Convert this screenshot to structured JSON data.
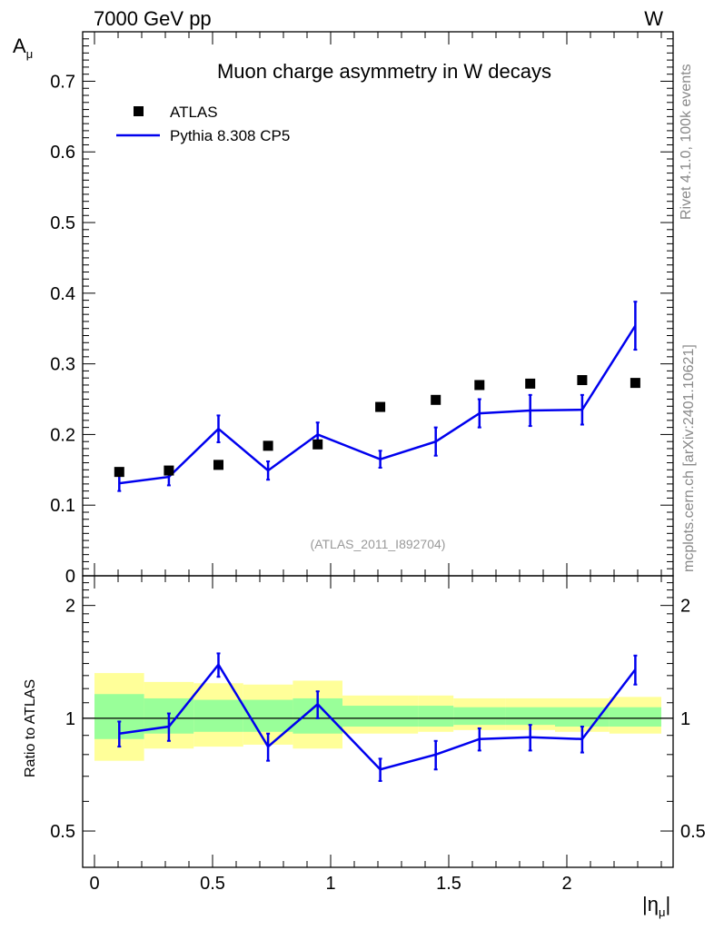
{
  "header": {
    "left": "7000 GeV pp",
    "right": "W"
  },
  "side_labels": {
    "rivet": "Rivet 4.1.0,  100k events",
    "mcplots": "mcplots.cern.ch [arXiv:2401.10621]"
  },
  "chart_data": [
    {
      "type": "scatter",
      "title": "Muon charge asymmetry in W decays",
      "ylabel_main": "A",
      "ylabel_sub": "μ",
      "xlabel_main": "|η",
      "xlabel_sub": "μ",
      "xlabel_close": "|",
      "analysis_tag": "(ATLAS_2011_I892704)",
      "xlim": [
        -0.05,
        2.45
      ],
      "ylim": [
        0,
        0.77
      ],
      "yticks": [
        0,
        0.1,
        0.2,
        0.3,
        0.4,
        0.5,
        0.6,
        0.7
      ],
      "ytick_labels": [
        "0",
        "0.1",
        "0.2",
        "0.3",
        "0.4",
        "0.5",
        "0.6",
        "0.7"
      ],
      "legend": {
        "position": "top-left",
        "data_label": "ATLAS",
        "mc_label": "Pythia 8.308 CP5"
      },
      "bins": [
        [
          0,
          0.21
        ],
        [
          0.21,
          0.42
        ],
        [
          0.42,
          0.63
        ],
        [
          0.63,
          0.84
        ],
        [
          0.84,
          1.05
        ],
        [
          1.05,
          1.37
        ],
        [
          1.37,
          1.52
        ],
        [
          1.52,
          1.74
        ],
        [
          1.74,
          1.95
        ],
        [
          1.95,
          2.18
        ],
        [
          2.18,
          2.4
        ]
      ],
      "series": [
        {
          "name": "ATLAS",
          "style": "markers",
          "color": "#000000",
          "x": [
            0.105,
            0.315,
            0.525,
            0.735,
            0.945,
            1.21,
            1.445,
            1.63,
            1.845,
            2.065,
            2.29
          ],
          "y": [
            0.147,
            0.149,
            0.157,
            0.184,
            0.186,
            0.239,
            0.249,
            0.27,
            0.272,
            0.277,
            0.273
          ]
        },
        {
          "name": "Pythia 8.308 CP5",
          "style": "line",
          "color": "#0000ee",
          "x": [
            0.105,
            0.315,
            0.525,
            0.735,
            0.945,
            1.21,
            1.445,
            1.63,
            1.845,
            2.065,
            2.29
          ],
          "y": [
            0.131,
            0.14,
            0.208,
            0.149,
            0.2,
            0.165,
            0.19,
            0.23,
            0.234,
            0.235,
            0.354
          ],
          "err": [
            0.011,
            0.012,
            0.019,
            0.013,
            0.017,
            0.012,
            0.02,
            0.02,
            0.022,
            0.021,
            0.034
          ]
        }
      ]
    },
    {
      "type": "line",
      "ylabel": "Ratio to ATLAS",
      "xlim": [
        -0.05,
        2.45
      ],
      "ylim": [
        0.4,
        2.4
      ],
      "yscale": "log",
      "yticks": [
        0.5,
        1,
        2
      ],
      "ytick_labels": [
        "0.5",
        "1",
        "2"
      ],
      "xticks": [
        0,
        0.5,
        1,
        1.5,
        2
      ],
      "xtick_labels": [
        "0",
        "0.5",
        "1",
        "1.5",
        "2"
      ],
      "reference": 1,
      "bands": {
        "yellow_color": "#ffff99",
        "green_color": "#99ff99",
        "bins": [
          [
            0,
            0.21
          ],
          [
            0.21,
            0.42
          ],
          [
            0.42,
            0.63
          ],
          [
            0.63,
            0.84
          ],
          [
            0.84,
            1.05
          ],
          [
            1.05,
            1.37
          ],
          [
            1.37,
            1.52
          ],
          [
            1.52,
            1.74
          ],
          [
            1.74,
            1.95
          ],
          [
            1.95,
            2.18
          ],
          [
            2.18,
            2.4
          ]
        ],
        "yellow_lo": [
          0.77,
          0.83,
          0.84,
          0.85,
          0.83,
          0.91,
          0.92,
          0.93,
          0.93,
          0.92,
          0.91
        ],
        "yellow_hi": [
          1.32,
          1.25,
          1.24,
          1.23,
          1.26,
          1.15,
          1.15,
          1.13,
          1.13,
          1.13,
          1.14
        ],
        "green_lo": [
          0.88,
          0.91,
          0.92,
          0.92,
          0.91,
          0.95,
          0.95,
          0.96,
          0.96,
          0.95,
          0.95
        ],
        "green_hi": [
          1.16,
          1.13,
          1.12,
          1.12,
          1.13,
          1.08,
          1.08,
          1.07,
          1.07,
          1.07,
          1.07
        ]
      },
      "series": [
        {
          "name": "Pythia 8.308 CP5 / ATLAS",
          "color": "#0000ee",
          "x": [
            0.105,
            0.315,
            0.525,
            0.735,
            0.945,
            1.21,
            1.445,
            1.63,
            1.845,
            2.065,
            2.29
          ],
          "y": [
            0.91,
            0.95,
            1.39,
            0.84,
            1.09,
            0.73,
            0.8,
            0.88,
            0.89,
            0.88,
            1.35
          ],
          "err": [
            0.07,
            0.08,
            0.1,
            0.07,
            0.09,
            0.05,
            0.07,
            0.06,
            0.07,
            0.07,
            0.12
          ]
        }
      ]
    }
  ]
}
